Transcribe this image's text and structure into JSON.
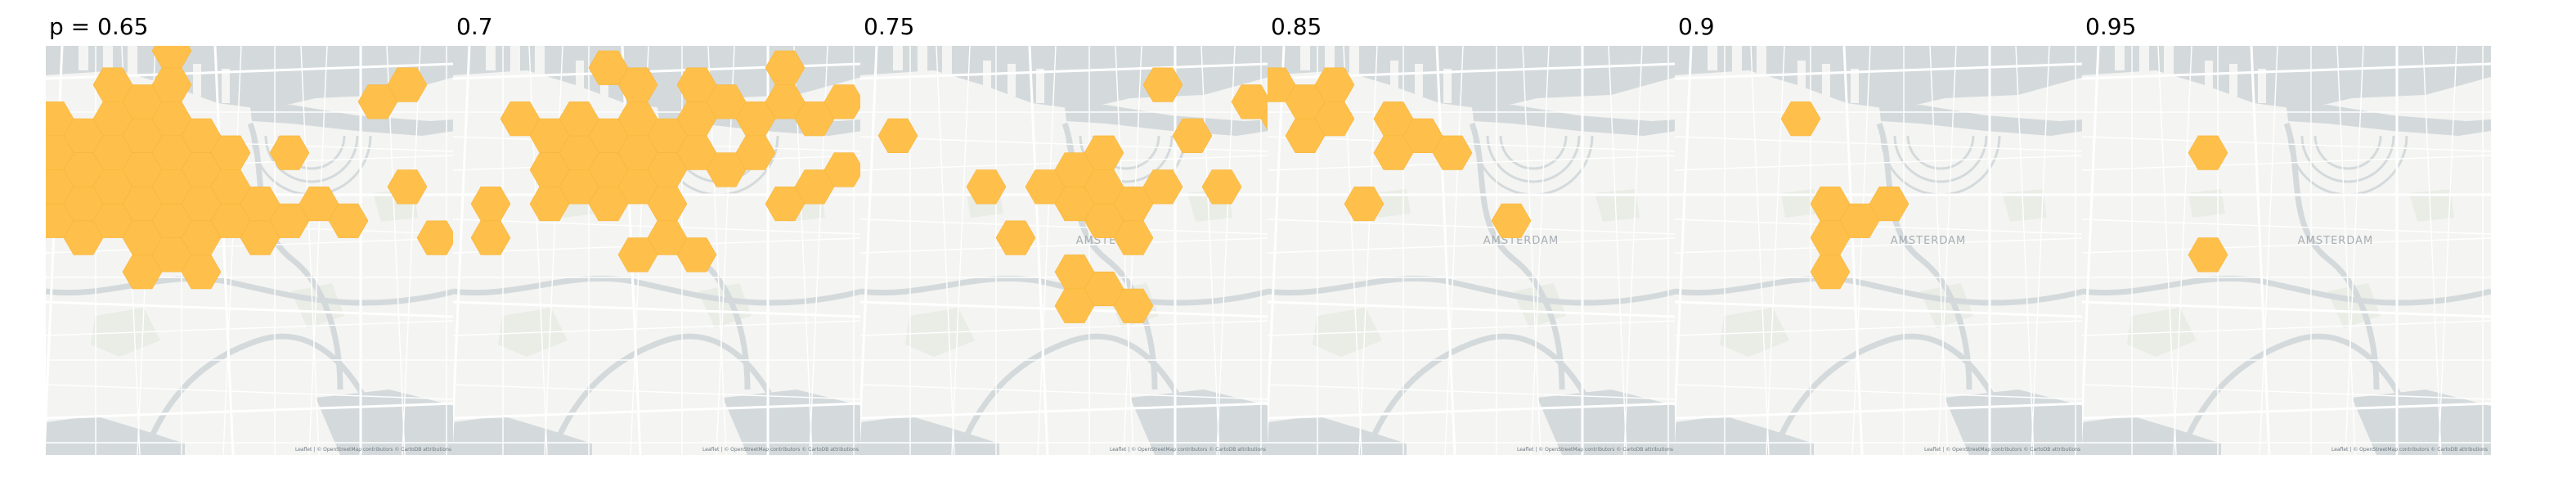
{
  "colors": {
    "hexagon": "#fec04a",
    "hexagon_stroke": "#f7b53c",
    "land": "#f4f4f2",
    "water": "#d4dadc",
    "road": "#ffffff",
    "park": "#e9ede6",
    "label": "#a7aeb4"
  },
  "map": {
    "city_label": "AMSTERDAM",
    "attribution": "Leaflet | © OpenStreetMap contributors © CartoDB attributions"
  },
  "panels": [
    {
      "title": "p = 0.65",
      "show_city_label": false
    },
    {
      "title": "0.7",
      "show_city_label": false
    },
    {
      "title": "0.75",
      "show_city_label": true
    },
    {
      "title": "0.85",
      "show_city_label": true
    },
    {
      "title": "0.9",
      "show_city_label": true
    },
    {
      "title": "0.95",
      "show_city_label": true
    }
  ]
}
